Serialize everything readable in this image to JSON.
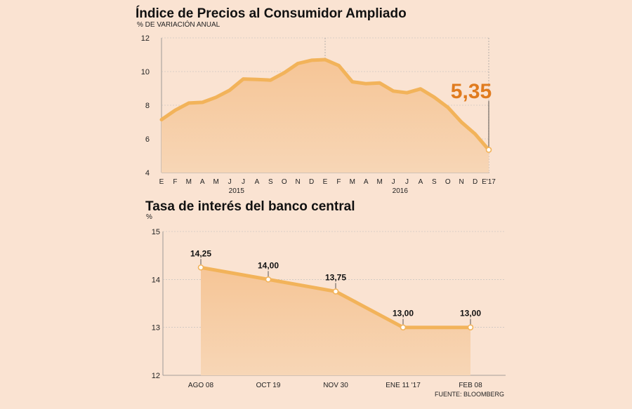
{
  "chart_data": [
    {
      "type": "area",
      "title": "Índice de Precios al Consumidor Ampliado",
      "subtitle": "% DE VARIACIÓN ANUAL",
      "categories": [
        "E",
        "F",
        "M",
        "A",
        "M",
        "J",
        "J",
        "A",
        "S",
        "O",
        "N",
        "D",
        "E",
        "F",
        "M",
        "A",
        "M",
        "J",
        "J",
        "A",
        "S",
        "O",
        "N",
        "D",
        "E'17"
      ],
      "year_labels": [
        {
          "label": "2015",
          "index": 5.5
        },
        {
          "label": "2016",
          "index": 17.5
        }
      ],
      "values": [
        7.14,
        7.7,
        8.13,
        8.17,
        8.47,
        8.89,
        9.56,
        9.53,
        9.49,
        9.93,
        10.48,
        10.67,
        10.71,
        10.36,
        9.39,
        9.28,
        9.32,
        8.84,
        8.74,
        8.97,
        8.48,
        7.87,
        6.99,
        6.29,
        5.35
      ],
      "highlight": {
        "index": 24,
        "label": "5,35"
      },
      "yticks": [
        4,
        6,
        8,
        10,
        12
      ],
      "ylim": [
        4,
        12
      ],
      "year_dividers": [
        12,
        24
      ]
    },
    {
      "type": "area",
      "title": "Tasa de interés del banco central",
      "ylabel": "%",
      "categories": [
        "AGO 08",
        "OCT 19",
        "NOV 30",
        "ENE 11 '17",
        "FEB 08"
      ],
      "values": [
        14.25,
        14.0,
        13.75,
        13.0,
        13.0
      ],
      "data_labels": [
        "14,25",
        "14,00",
        "13,75",
        "13,00",
        "13,00"
      ],
      "yticks": [
        12,
        13,
        14,
        15
      ],
      "ylim": [
        12,
        15
      ]
    }
  ],
  "source": "FUENTE: BLOOMBERG",
  "colors": {
    "background": "#fae3d2",
    "line": "#f2b35a",
    "area_top": "#f6c596",
    "area_bottom": "#f7d6b6",
    "highlight": "#e07b1e",
    "axis": "#888888"
  }
}
